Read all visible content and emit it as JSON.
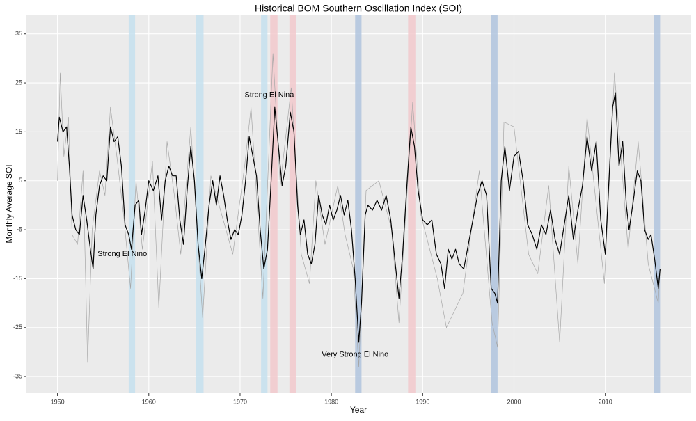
{
  "chart_data": {
    "type": "line",
    "title": "Historical BOM Southern Oscillation Index (SOI)",
    "x_label": "Year",
    "y_label": "Monthly Average SOI",
    "xlim": [
      1946.6,
      2019.4
    ],
    "ylim": [
      -38.4,
      38.8
    ],
    "xticks": [
      1950,
      1960,
      1970,
      1980,
      1990,
      2000,
      2010
    ],
    "yticks": [
      -35,
      -25,
      -15,
      -5,
      5,
      15,
      25,
      35
    ],
    "grid": true,
    "shaded_periods": [
      {
        "start": 1957.8,
        "end": 1958.5,
        "color": "#c6e0ef"
      },
      {
        "start": 1965.2,
        "end": 1966.0,
        "color": "#c6e0ef"
      },
      {
        "start": 1972.3,
        "end": 1973.0,
        "color": "#c6e0ef"
      },
      {
        "start": 1973.3,
        "end": 1974.1,
        "color": "#f2c9cc"
      },
      {
        "start": 1975.4,
        "end": 1976.1,
        "color": "#f2c9cc"
      },
      {
        "start": 1982.6,
        "end": 1983.3,
        "color": "#b0c4de"
      },
      {
        "start": 1988.4,
        "end": 1989.2,
        "color": "#f2c9cc"
      },
      {
        "start": 1997.5,
        "end": 1998.2,
        "color": "#b0c4de"
      },
      {
        "start": 2015.3,
        "end": 2016.0,
        "color": "#b0c4de"
      }
    ],
    "annotations": [
      {
        "text": "Strong El Nino",
        "x": 1957.1,
        "y": -10
      },
      {
        "text": "Strong El Nina",
        "x": 1973.2,
        "y": 22.5
      },
      {
        "text": "Very Strong El Nino",
        "x": 1982.6,
        "y": -30.5
      }
    ],
    "series": [
      {
        "color": "#a6a6a6",
        "x": [
          1950.0,
          1950.3,
          1950.7,
          1951.2,
          1951.6,
          1952.2,
          1952.8,
          1953.3,
          1953.8,
          1954.6,
          1955.2,
          1955.8,
          1956.5,
          1957.3,
          1958.0,
          1958.6,
          1959.3,
          1960.4,
          1961.1,
          1962.0,
          1962.8,
          1963.5,
          1964.6,
          1965.9,
          1966.8,
          1968.0,
          1969.2,
          1970.5,
          1971.2,
          1972.5,
          1973.6,
          1974.4,
          1975.6,
          1976.7,
          1977.6,
          1978.3,
          1979.3,
          1980.7,
          1981.5,
          1982.4,
          1983.0,
          1983.8,
          1985.2,
          1986.6,
          1987.4,
          1988.9,
          1989.8,
          1991.6,
          1992.6,
          1994.4,
          1996.2,
          1997.6,
          1998.2,
          1998.9,
          2000.0,
          2001.6,
          2002.6,
          2003.8,
          2005.0,
          2006.0,
          2007.0,
          2008.0,
          2009.9,
          2011.0,
          2012.5,
          2013.6,
          2014.7,
          2015.8,
          2016.0
        ],
        "values": [
          5,
          27,
          10,
          18,
          -6,
          -8,
          7,
          -32,
          -5,
          7,
          2,
          20,
          10,
          -3,
          -17,
          5,
          -9,
          9,
          -21,
          13,
          2,
          -10,
          16,
          -23,
          6,
          -2,
          -10,
          8,
          20,
          -19,
          31,
          4,
          24,
          -10,
          -16,
          5,
          -8,
          4,
          -6,
          -13,
          -33,
          3,
          5,
          -5,
          -24,
          21,
          -2,
          -15,
          -25,
          -18,
          7,
          -24,
          -29,
          17,
          16,
          -10,
          -14,
          4,
          -28,
          8,
          -12,
          18,
          -16,
          27,
          -9,
          13,
          -12,
          -20,
          -13
        ]
      },
      {
        "color": "#000000",
        "x": [
          1950.0,
          1950.2,
          1950.6,
          1951.0,
          1951.3,
          1951.6,
          1952.0,
          1952.4,
          1952.8,
          1953.2,
          1953.6,
          1953.9,
          1954.2,
          1954.6,
          1955.0,
          1955.4,
          1955.8,
          1956.2,
          1956.6,
          1957.0,
          1957.4,
          1957.8,
          1958.1,
          1958.5,
          1958.9,
          1959.2,
          1959.6,
          1960.0,
          1960.5,
          1961.0,
          1961.4,
          1961.8,
          1962.2,
          1962.6,
          1963.0,
          1963.4,
          1963.8,
          1964.2,
          1964.6,
          1965.0,
          1965.4,
          1965.8,
          1966.2,
          1966.6,
          1967.0,
          1967.4,
          1967.8,
          1968.2,
          1968.6,
          1969.0,
          1969.4,
          1969.8,
          1970.2,
          1970.6,
          1971.0,
          1971.4,
          1971.8,
          1972.2,
          1972.6,
          1973.0,
          1973.4,
          1973.8,
          1974.2,
          1974.6,
          1975.0,
          1975.5,
          1975.9,
          1976.3,
          1976.6,
          1977.0,
          1977.4,
          1977.8,
          1978.2,
          1978.6,
          1979.0,
          1979.4,
          1979.8,
          1980.2,
          1980.6,
          1981.0,
          1981.4,
          1981.8,
          1982.2,
          1982.6,
          1983.0,
          1983.3,
          1983.7,
          1984.0,
          1984.5,
          1985.0,
          1985.5,
          1986.0,
          1986.5,
          1987.0,
          1987.4,
          1987.8,
          1988.3,
          1988.7,
          1989.1,
          1989.5,
          1990.0,
          1990.5,
          1991.0,
          1991.5,
          1992.0,
          1992.4,
          1992.8,
          1993.2,
          1993.6,
          1994.0,
          1994.5,
          1995.0,
          1995.5,
          1996.0,
          1996.5,
          1997.0,
          1997.5,
          1997.9,
          1998.2,
          1998.6,
          1999.0,
          1999.5,
          2000.0,
          2000.5,
          2001.0,
          2001.5,
          2002.0,
          2002.5,
          2003.0,
          2003.5,
          2004.0,
          2004.5,
          2005.0,
          2005.5,
          2006.0,
          2006.5,
          2007.0,
          2007.5,
          2008.0,
          2008.5,
          2009.0,
          2009.5,
          2010.0,
          2010.5,
          2010.8,
          2011.1,
          2011.5,
          2011.9,
          2012.3,
          2012.6,
          2013.0,
          2013.5,
          2013.9,
          2014.3,
          2014.7,
          2015.0,
          2015.4,
          2015.8,
          2016.0
        ],
        "values": [
          13,
          18,
          15,
          16,
          8,
          -2,
          -5,
          -6,
          2,
          -3,
          -9,
          -13,
          -2,
          4,
          6,
          5,
          16,
          13,
          14,
          8,
          -4,
          -6,
          -9,
          0,
          1,
          -6,
          -1,
          5,
          3,
          6,
          -3,
          5,
          8,
          6,
          6,
          -3,
          -8,
          3,
          12,
          5,
          -8,
          -15,
          -8,
          0,
          5,
          0,
          6,
          2,
          -3,
          -7,
          -5,
          -6,
          -2,
          5,
          14,
          10,
          6,
          -5,
          -13,
          -9,
          5,
          20,
          12,
          4,
          8,
          19,
          15,
          0,
          -6,
          -3,
          -10,
          -12,
          -8,
          2,
          -2,
          -4,
          0,
          -3,
          -1,
          2,
          -2,
          1,
          -5,
          -15,
          -28,
          -20,
          -2,
          0,
          -1,
          1,
          -1,
          2,
          -3,
          -12,
          -19,
          -10,
          5,
          16,
          12,
          3,
          -3,
          -4,
          -3,
          -10,
          -12,
          -17,
          -9,
          -11,
          -9,
          -12,
          -13,
          -8,
          -3,
          2,
          5,
          2,
          -17,
          -18,
          -20,
          5,
          12,
          3,
          10,
          11,
          5,
          -4,
          -6,
          -9,
          -4,
          -6,
          -1,
          -7,
          -10,
          -4,
          2,
          -7,
          -1,
          4,
          14,
          7,
          13,
          -3,
          -10,
          9,
          20,
          23,
          8,
          13,
          0,
          -5,
          0,
          7,
          5,
          -5,
          -7,
          -6,
          -11,
          -17,
          -13
        ]
      }
    ]
  }
}
